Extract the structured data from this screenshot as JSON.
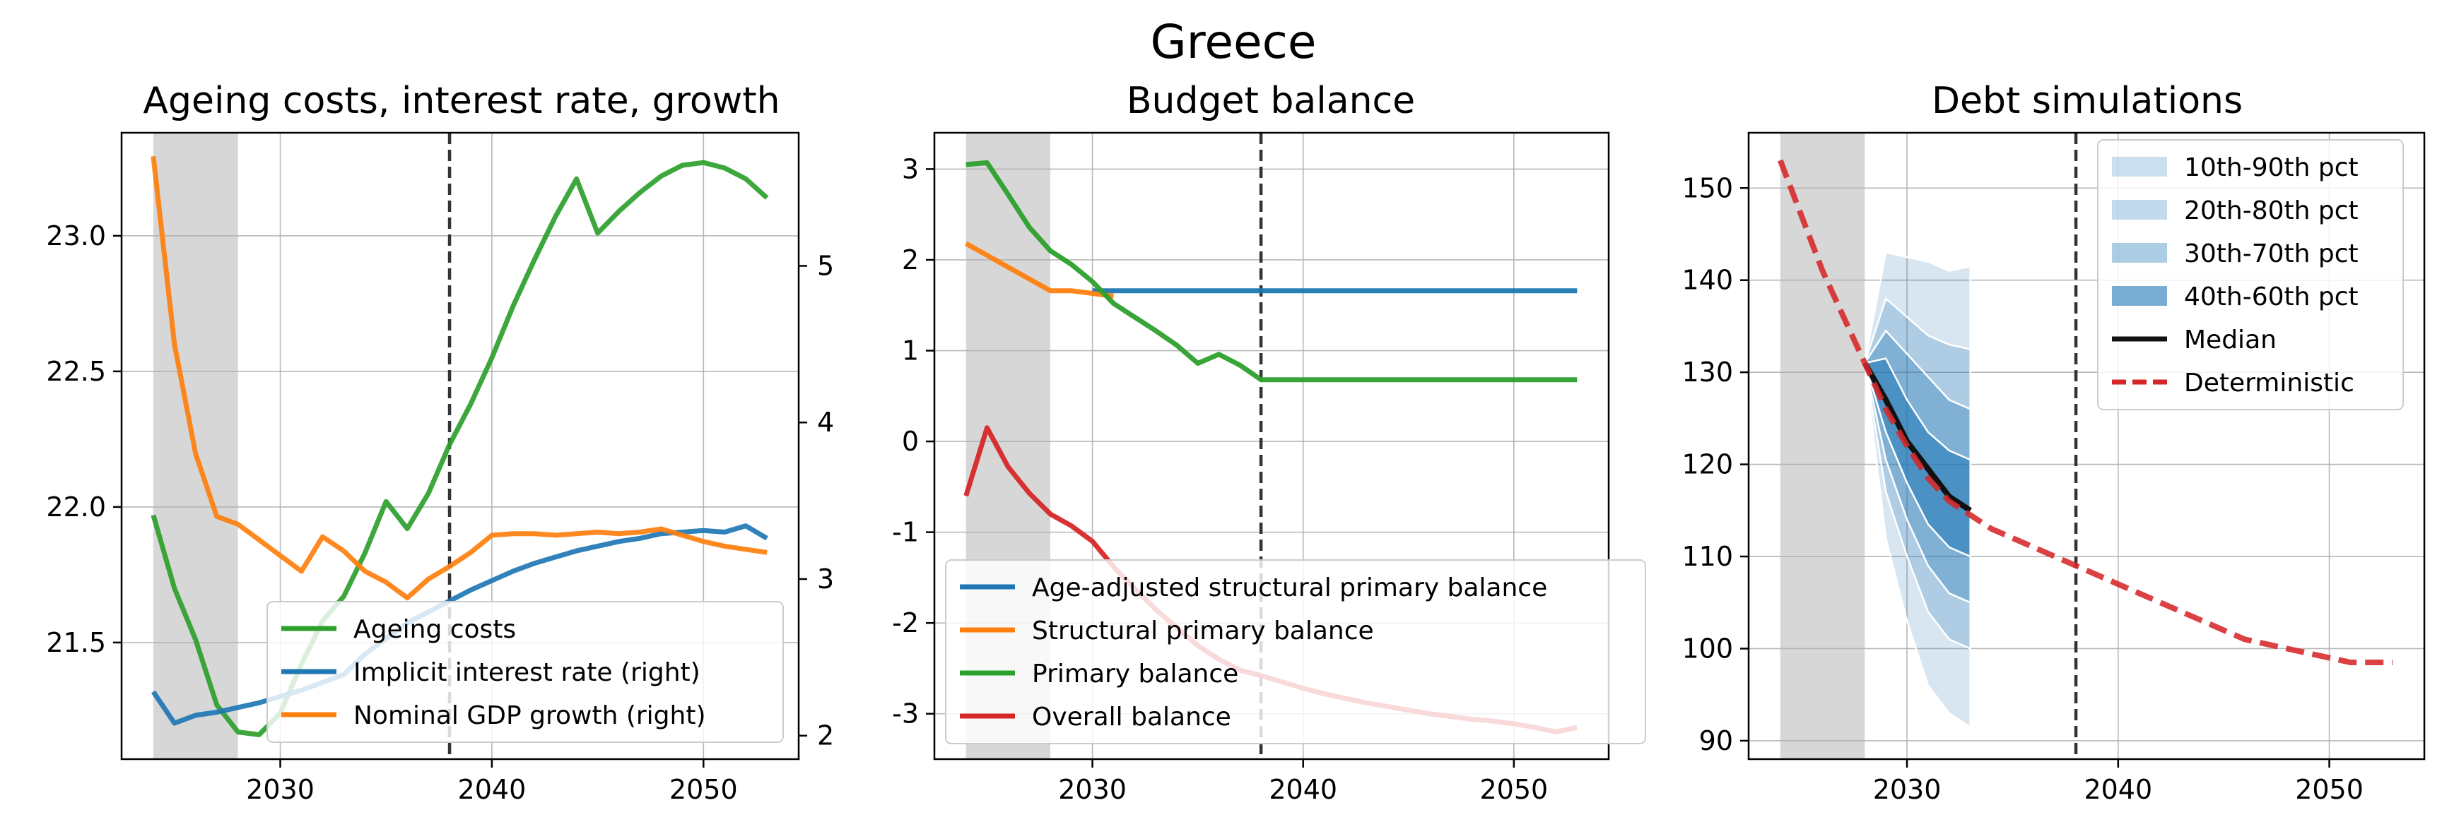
{
  "figure_title": "Greece",
  "colors": {
    "ageing": "#2ca02c",
    "implicit": "#1f77b4",
    "growth": "#ff7f0e",
    "age_adj": "#1f77b4",
    "structural": "#ff7f0e",
    "primary": "#2ca02c",
    "overall": "#d62728",
    "fan": "#1f77b4",
    "median": "#111111",
    "deterministic": "#d62728",
    "shade": "#d3d3d3"
  },
  "chart_data": [
    {
      "type": "line",
      "title": "Ageing costs, interest rate, growth",
      "xlim": [
        2022.5,
        2054.5
      ],
      "ylim": [
        21.07,
        23.38
      ],
      "ylim_right": [
        1.85,
        5.85
      ],
      "xticks": [
        "2030",
        "2040",
        "2050"
      ],
      "xtick_values": [
        2030,
        2040,
        2050
      ],
      "yticks_left": [
        "21.5",
        "22.0",
        "22.5",
        "23.0"
      ],
      "ytick_values_left": [
        21.5,
        22.0,
        22.5,
        23.0
      ],
      "yticks_right": [
        "2",
        "3",
        "4",
        "5"
      ],
      "ytick_values_right": [
        2,
        3,
        4,
        5
      ],
      "shaded_region": [
        2024,
        2028
      ],
      "vertical_line": 2038,
      "legend_position": "lower-right",
      "series": [
        {
          "name": "Ageing costs",
          "axis": "left",
          "color_key": "ageing",
          "x": [
            2024,
            2025,
            2026,
            2027,
            2028,
            2029,
            2030,
            2031,
            2032,
            2033,
            2034,
            2035,
            2036,
            2037,
            2038,
            2039,
            2040,
            2041,
            2042,
            2043,
            2044,
            2045,
            2046,
            2047,
            2048,
            2049,
            2050,
            2051,
            2052,
            2053
          ],
          "y": [
            21.97,
            21.7,
            21.51,
            21.27,
            21.17,
            21.16,
            21.24,
            21.42,
            21.58,
            21.67,
            21.83,
            22.02,
            21.92,
            22.05,
            22.23,
            22.38,
            22.55,
            22.74,
            22.91,
            23.07,
            23.21,
            23.01,
            23.09,
            23.16,
            23.22,
            23.26,
            23.27,
            23.25,
            23.21,
            23.14
          ]
        },
        {
          "name": "Implicit interest rate (right)",
          "axis": "right",
          "color_key": "implicit",
          "x": [
            2024,
            2025,
            2026,
            2027,
            2028,
            2029,
            2030,
            2031,
            2032,
            2033,
            2034,
            2035,
            2036,
            2037,
            2038,
            2039,
            2040,
            2041,
            2042,
            2043,
            2044,
            2045,
            2046,
            2047,
            2048,
            2049,
            2050,
            2051,
            2052,
            2053
          ],
          "y": [
            2.28,
            2.08,
            2.13,
            2.15,
            2.18,
            2.21,
            2.25,
            2.29,
            2.34,
            2.39,
            2.52,
            2.62,
            2.72,
            2.79,
            2.86,
            2.93,
            2.99,
            3.05,
            3.1,
            3.14,
            3.18,
            3.21,
            3.24,
            3.26,
            3.29,
            3.3,
            3.31,
            3.3,
            3.34,
            3.26
          ]
        },
        {
          "name": "Nominal GDP growth (right)",
          "axis": "right",
          "color_key": "growth",
          "x": [
            2024,
            2025,
            2026,
            2027,
            2028,
            2029,
            2030,
            2031,
            2032,
            2033,
            2034,
            2035,
            2036,
            2037,
            2038,
            2039,
            2040,
            2041,
            2042,
            2043,
            2044,
            2045,
            2046,
            2047,
            2048,
            2049,
            2050,
            2051,
            2052,
            2053
          ],
          "y": [
            5.7,
            4.5,
            3.8,
            3.4,
            3.35,
            3.25,
            3.15,
            3.05,
            3.27,
            3.18,
            3.05,
            2.98,
            2.88,
            3.0,
            3.08,
            3.17,
            3.28,
            3.29,
            3.29,
            3.28,
            3.29,
            3.3,
            3.29,
            3.3,
            3.32,
            3.28,
            3.24,
            3.21,
            3.19,
            3.17
          ]
        }
      ]
    },
    {
      "type": "line",
      "title": "Budget balance",
      "xlim": [
        2022.5,
        2054.5
      ],
      "ylim": [
        -3.5,
        3.4
      ],
      "xticks": [
        "2030",
        "2040",
        "2050"
      ],
      "xtick_values": [
        2030,
        2040,
        2050
      ],
      "yticks": [
        "-3",
        "-2",
        "-1",
        "0",
        "1",
        "2",
        "3"
      ],
      "ytick_values": [
        -3,
        -2,
        -1,
        0,
        1,
        2,
        3
      ],
      "shaded_region": [
        2024,
        2028
      ],
      "vertical_line": 2038,
      "legend_position": "lower-right",
      "series": [
        {
          "name": "Age-adjusted structural primary balance",
          "color_key": "age_adj",
          "x": [
            2030,
            2031,
            2032,
            2033,
            2034,
            2035,
            2036,
            2037,
            2038,
            2039,
            2040,
            2041,
            2042,
            2043,
            2044,
            2045,
            2046,
            2047,
            2048,
            2049,
            2050,
            2051,
            2052,
            2053
          ],
          "y": [
            1.66,
            1.66,
            1.66,
            1.66,
            1.66,
            1.66,
            1.66,
            1.66,
            1.66,
            1.66,
            1.66,
            1.66,
            1.66,
            1.66,
            1.66,
            1.66,
            1.66,
            1.66,
            1.66,
            1.66,
            1.66,
            1.66,
            1.66,
            1.66
          ]
        },
        {
          "name": "Structural primary balance",
          "color_key": "structural",
          "x": [
            2024,
            2025,
            2026,
            2027,
            2028,
            2029,
            2030,
            2031
          ],
          "y": [
            2.18,
            2.05,
            1.92,
            1.79,
            1.66,
            1.66,
            1.63,
            1.6
          ]
        },
        {
          "name": "Primary balance",
          "color_key": "primary",
          "x": [
            2024,
            2025,
            2026,
            2027,
            2028,
            2029,
            2030,
            2031,
            2032,
            2033,
            2034,
            2035,
            2036,
            2037,
            2038,
            2039,
            2040,
            2041,
            2042,
            2043,
            2044,
            2045,
            2046,
            2047,
            2048,
            2049,
            2050,
            2051,
            2052,
            2053
          ],
          "y": [
            3.05,
            3.07,
            2.72,
            2.36,
            2.1,
            1.95,
            1.76,
            1.52,
            1.37,
            1.22,
            1.06,
            0.86,
            0.96,
            0.84,
            0.68,
            0.68,
            0.68,
            0.68,
            0.68,
            0.68,
            0.68,
            0.68,
            0.68,
            0.68,
            0.68,
            0.68,
            0.68,
            0.68,
            0.68,
            0.68
          ]
        },
        {
          "name": "Overall balance",
          "color_key": "overall",
          "x": [
            2024,
            2025,
            2026,
            2027,
            2028,
            2029,
            2030,
            2031,
            2032,
            2033,
            2034,
            2035,
            2036,
            2037,
            2038,
            2039,
            2040,
            2041,
            2042,
            2043,
            2044,
            2045,
            2046,
            2047,
            2048,
            2049,
            2050,
            2051,
            2052,
            2053
          ],
          "y": [
            -0.6,
            0.15,
            -0.28,
            -0.57,
            -0.8,
            -0.93,
            -1.1,
            -1.38,
            -1.62,
            -1.85,
            -2.05,
            -2.25,
            -2.4,
            -2.52,
            -2.58,
            -2.65,
            -2.72,
            -2.78,
            -2.83,
            -2.88,
            -2.92,
            -2.96,
            -3.0,
            -3.03,
            -3.06,
            -3.08,
            -3.11,
            -3.15,
            -3.2,
            -3.15
          ]
        }
      ]
    },
    {
      "type": "area",
      "title": "Debt simulations",
      "xlim": [
        2022.5,
        2054.5
      ],
      "ylim": [
        88,
        156
      ],
      "xticks": [
        "2030",
        "2040",
        "2050"
      ],
      "xtick_values": [
        2030,
        2040,
        2050
      ],
      "yticks": [
        "90",
        "100",
        "110",
        "120",
        "130",
        "140",
        "150"
      ],
      "ytick_values": [
        90,
        100,
        110,
        120,
        130,
        140,
        150
      ],
      "shaded_region": [
        2024,
        2028
      ],
      "vertical_line": 2038,
      "legend_position": "upper-right",
      "fan_x": [
        2028,
        2029,
        2030,
        2031,
        2032,
        2033
      ],
      "fan_bands": [
        {
          "name": "10th-90th pct",
          "opacity": 0.18,
          "low": [
            131.0,
            112.0,
            103.0,
            96.0,
            93.0,
            91.5
          ],
          "high": [
            131.0,
            143.0,
            142.5,
            142.0,
            141.0,
            141.5
          ]
        },
        {
          "name": "20th-80th pct",
          "opacity": 0.22,
          "low": [
            131.0,
            117.0,
            110.0,
            104.0,
            101.0,
            100.0
          ],
          "high": [
            131.0,
            138.0,
            136.0,
            134.0,
            133.0,
            132.5
          ]
        },
        {
          "name": "30th-70th pct",
          "opacity": 0.32,
          "low": [
            131.0,
            120.5,
            114.0,
            109.0,
            106.0,
            105.0
          ],
          "high": [
            131.0,
            134.5,
            132.0,
            129.5,
            127.0,
            126.0
          ]
        },
        {
          "name": "40th-60th pct",
          "opacity": 0.55,
          "low": [
            131.0,
            123.5,
            118.0,
            113.5,
            111.0,
            110.0
          ],
          "high": [
            131.0,
            131.5,
            127.0,
            123.5,
            121.5,
            120.5
          ]
        }
      ],
      "series": [
        {
          "name": "Median",
          "color_key": "median",
          "style": "solid",
          "x": [
            2028,
            2029,
            2030,
            2031,
            2032,
            2033
          ],
          "y": [
            131.0,
            127.0,
            122.5,
            119.5,
            116.5,
            115.0
          ]
        },
        {
          "name": "Deterministic",
          "color_key": "deterministic",
          "style": "dashed",
          "x": [
            2024,
            2025,
            2026,
            2027,
            2028,
            2029,
            2030,
            2031,
            2032,
            2033,
            2034,
            2035,
            2036,
            2037,
            2038,
            2039,
            2040,
            2041,
            2042,
            2043,
            2044,
            2045,
            2046,
            2047,
            2048,
            2049,
            2050,
            2051,
            2052,
            2053
          ],
          "y": [
            153.0,
            147.0,
            141.0,
            136.0,
            131.0,
            126.0,
            122.0,
            118.5,
            116.0,
            114.5,
            113.0,
            112.0,
            111.0,
            110.0,
            109.0,
            108.0,
            107.0,
            106.0,
            105.0,
            104.0,
            103.0,
            102.0,
            101.0,
            100.5,
            100.0,
            99.5,
            99.0,
            98.5,
            98.5,
            98.5
          ]
        }
      ]
    }
  ]
}
